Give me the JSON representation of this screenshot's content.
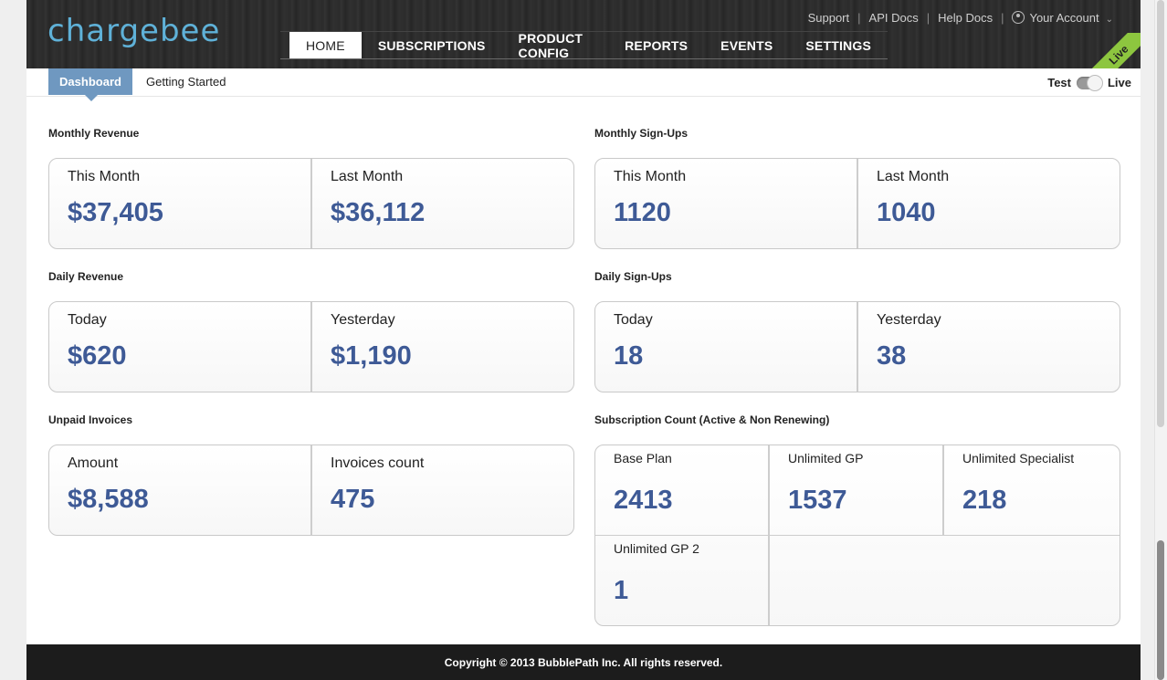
{
  "brand": {
    "logo": "chargebee"
  },
  "toplinks": {
    "support": "Support",
    "api_docs": "API Docs",
    "help_docs": "Help Docs",
    "account": "Your Account"
  },
  "nav": {
    "home": "HOME",
    "subscriptions": "SUBSCRIPTIONS",
    "product_config": "PRODUCT CONFIG",
    "reports": "REPORTS",
    "events": "EVENTS",
    "settings": "SETTINGS"
  },
  "ribbon": "Live",
  "subnav": {
    "dashboard": "Dashboard",
    "getting_started": "Getting Started"
  },
  "mode": {
    "test": "Test",
    "live": "Live"
  },
  "monthly_revenue": {
    "title": "Monthly Revenue",
    "this_label": "This Month",
    "this_value": "$37,405",
    "last_label": "Last Month",
    "last_value": "$36,112"
  },
  "monthly_signups": {
    "title": "Monthly Sign-Ups",
    "this_label": "This Month",
    "this_value": "1120",
    "last_label": "Last Month",
    "last_value": "1040"
  },
  "daily_revenue": {
    "title": "Daily Revenue",
    "today_label": "Today",
    "today_value": "$620",
    "yesterday_label": "Yesterday",
    "yesterday_value": "$1,190"
  },
  "daily_signups": {
    "title": "Daily Sign-Ups",
    "today_label": "Today",
    "today_value": "18",
    "yesterday_label": "Yesterday",
    "yesterday_value": "38"
  },
  "unpaid_invoices": {
    "title": "Unpaid Invoices",
    "amount_label": "Amount",
    "amount_value": "$8,588",
    "count_label": "Invoices count",
    "count_value": "475"
  },
  "subscription_count": {
    "title": "Subscription Count (Active & Non Renewing)",
    "plans": [
      {
        "label": "Base Plan",
        "value": "2413"
      },
      {
        "label": "Unlimited GP",
        "value": "1537"
      },
      {
        "label": "Unlimited Specialist",
        "value": "218"
      },
      {
        "label": "Unlimited GP 2",
        "value": "1"
      }
    ]
  },
  "footer": "Copyright © 2013 BubblePath Inc. All rights reserved.",
  "colors": {
    "accent": "#6f98c0",
    "value": "#3e5a96",
    "live": "#8dc63f",
    "logo": "#5fb1d8"
  }
}
